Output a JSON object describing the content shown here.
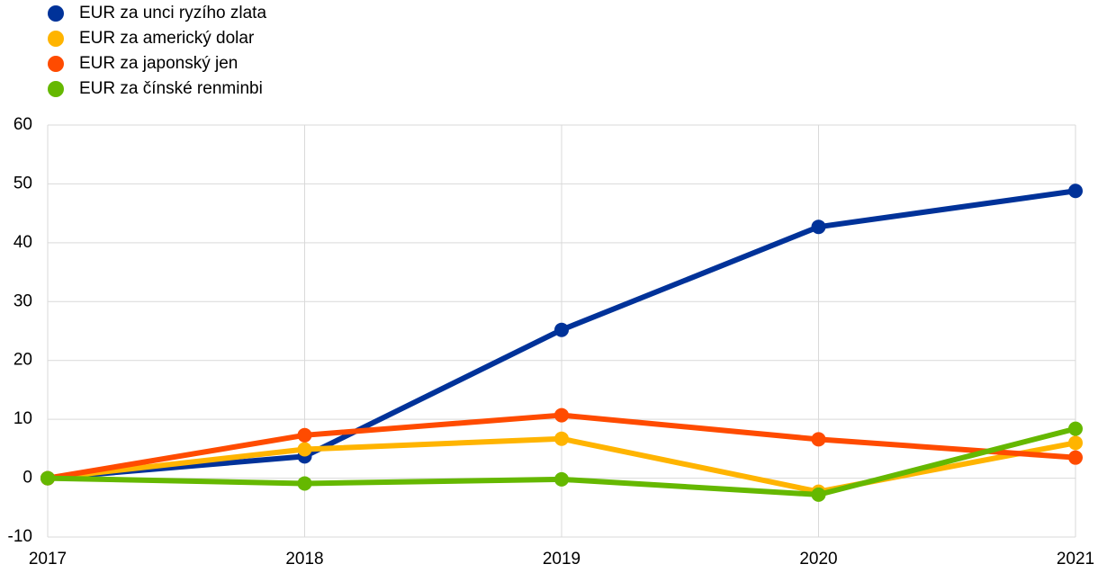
{
  "chart_data": {
    "type": "line",
    "categories": [
      "2017",
      "2018",
      "2019",
      "2020",
      "2021"
    ],
    "series": [
      {
        "name": "EUR za unci ryzího zlata",
        "color": "#003299",
        "values": [
          0,
          3.7,
          25.2,
          42.7,
          48.8
        ]
      },
      {
        "name": "EUR za americký dolar",
        "color": "#ffb400",
        "values": [
          0,
          4.9,
          6.7,
          -2.3,
          6.0
        ]
      },
      {
        "name": "EUR za japonský jen",
        "color": "#ff4b00",
        "values": [
          0,
          7.3,
          10.7,
          6.6,
          3.5
        ]
      },
      {
        "name": "EUR za čínské renminbi",
        "color": "#65b800",
        "values": [
          0,
          -0.9,
          -0.2,
          -2.8,
          8.4
        ]
      }
    ],
    "ylim": [
      -10,
      60
    ],
    "yticks": [
      -10,
      0,
      10,
      20,
      30,
      40,
      50,
      60
    ],
    "grid": true,
    "legend": "top-left"
  }
}
